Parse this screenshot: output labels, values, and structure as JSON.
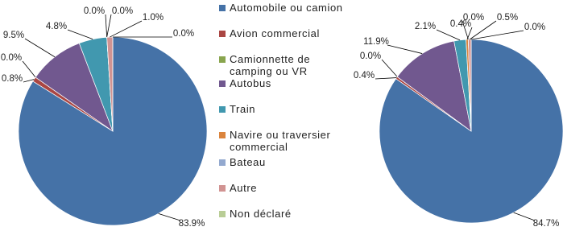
{
  "chart_data": {
    "type": "pie",
    "categories": [
      "Automobile ou camion",
      "Avion commercial",
      "Camionnette de camping ou VR",
      "Autobus",
      "Train",
      "Navire ou traversier commercial",
      "Bateau",
      "Autre",
      "Non déclaré"
    ],
    "colors": [
      "#4572a7",
      "#aa4643",
      "#89a54e",
      "#71588f",
      "#4198af",
      "#db843d",
      "#93a9cf",
      "#d19392",
      "#b9cd96"
    ],
    "pies": [
      {
        "values": [
          83.9,
          0.8,
          0.0,
          9.5,
          4.8,
          0.0,
          0.0,
          1.0,
          0.0
        ],
        "value_labels": [
          "83.9%",
          "0.8%",
          "0.0%",
          "9.5%",
          "4.8%",
          "0.0%",
          "0.0%",
          "1.0%",
          "0.0%"
        ]
      },
      {
        "values": [
          84.7,
          0.4,
          0.0,
          11.9,
          2.1,
          0.4,
          0.0,
          0.5,
          0.0
        ],
        "value_labels": [
          "84.7%",
          "0.4%",
          "0.0%",
          "11.9%",
          "2.1%",
          "0.4%",
          "0.0%",
          "0.5%",
          "0.0%"
        ]
      }
    ]
  }
}
